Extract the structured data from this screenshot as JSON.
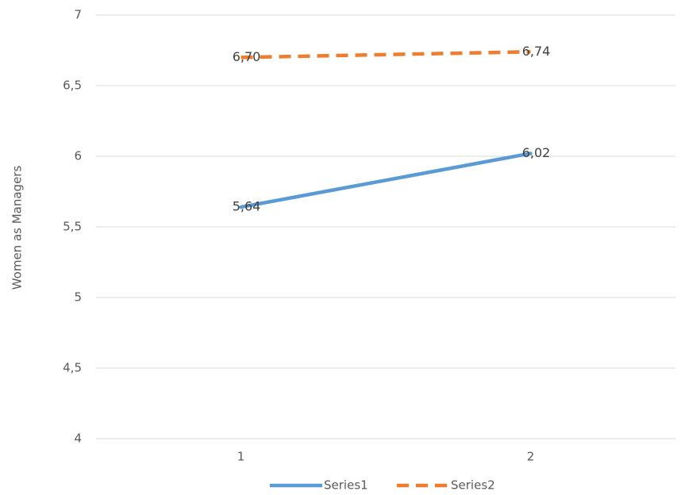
{
  "chart_data": {
    "type": "line",
    "categories": [
      "1",
      "2"
    ],
    "series": [
      {
        "name": "Series1",
        "values": [
          5.64,
          6.02
        ],
        "labels": [
          "5,64",
          "6,02"
        ],
        "color": "#5b9bd5",
        "dashed": false
      },
      {
        "name": "Series2",
        "values": [
          6.7,
          6.74
        ],
        "labels": [
          "6,70",
          "6,74"
        ],
        "color": "#ed7d31",
        "dashed": true
      }
    ],
    "title": "",
    "xlabel": "",
    "ylabel": "Women as Managers",
    "ylim": [
      4,
      7
    ],
    "yticks": [
      4,
      4.5,
      5,
      5.5,
      6,
      6.5,
      7
    ],
    "ytick_labels": [
      "4",
      "4,5",
      "5",
      "5,5",
      "6",
      "6,5",
      "7"
    ],
    "grid": true,
    "legend_position": "bottom"
  }
}
